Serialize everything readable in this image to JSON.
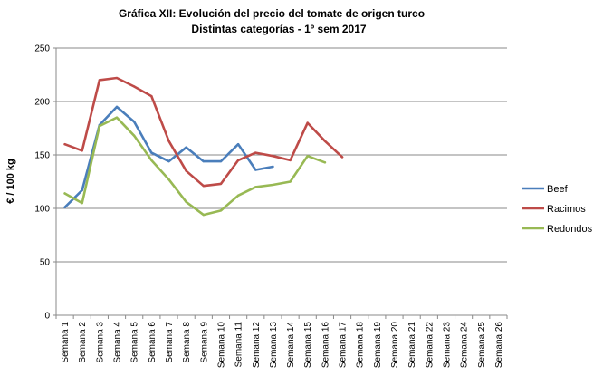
{
  "chart_data": {
    "type": "line",
    "title": "Gráfica XII: Evolución del precio del tomate de origen turco",
    "subtitle": "Distintas categorías - 1º sem 2017",
    "ylabel": "€ / 100 kg",
    "xlabel": "",
    "ylim": [
      0,
      250
    ],
    "yticks": [
      0,
      50,
      100,
      150,
      200,
      250
    ],
    "grid": true,
    "legend_position": "right",
    "categories": [
      "Semana 1",
      "Semana 2",
      "Semana 3",
      "Semana 4",
      "Semana 5",
      "Semana 6",
      "Semana 7",
      "Semana 8",
      "Semana 9",
      "Semana 10",
      "Semana 11",
      "Semana 12",
      "Semana 13",
      "Semana 14",
      "Semana 15",
      "Semana 16",
      "Semana 17",
      "Semana 18",
      "Semana 19",
      "Semana 20",
      "Semana 21",
      "Semana 22",
      "Semana 23",
      "Semana 24",
      "Semana 25",
      "Semana 26"
    ],
    "series": [
      {
        "name": "Beef",
        "color": "#4a7ebb",
        "values": [
          101,
          117,
          178,
          195,
          181,
          152,
          144,
          157,
          144,
          144,
          160,
          136,
          139,
          null,
          null,
          null,
          null,
          null,
          null,
          null,
          null,
          null,
          null,
          null,
          null,
          null
        ]
      },
      {
        "name": "Racimos",
        "color": "#be4b48",
        "values": [
          160,
          154,
          220,
          222,
          214,
          205,
          163,
          135,
          121,
          123,
          145,
          152,
          149,
          145,
          180,
          163,
          148,
          null,
          null,
          null,
          null,
          null,
          null,
          null,
          null,
          null
        ]
      },
      {
        "name": "Redondos",
        "color": "#98b954",
        "values": [
          114,
          105,
          177,
          185,
          168,
          145,
          127,
          106,
          94,
          98,
          112,
          120,
          122,
          125,
          149,
          143,
          null,
          null,
          null,
          null,
          null,
          null,
          null,
          null,
          null,
          null
        ]
      }
    ]
  }
}
